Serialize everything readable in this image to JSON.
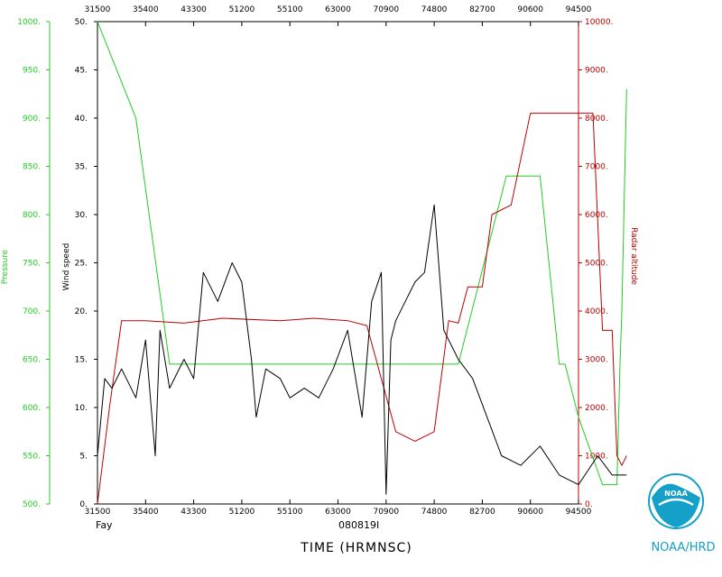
{
  "chart_data": {
    "type": "line",
    "x_ticks": [
      "31500",
      "35400",
      "43300",
      "51200",
      "55100",
      "63000",
      "70900",
      "74800",
      "82700",
      "90600",
      "94500"
    ],
    "xlabel": "TIME (HRMNSC)",
    "storm": "Fay",
    "flight_id": "080819I",
    "axes": {
      "wind": {
        "label": "Wind speed",
        "range": [
          0,
          50
        ],
        "ticks": [
          "0.",
          "5.",
          "10.",
          "15.",
          "20.",
          "25.",
          "30.",
          "35.",
          "40.",
          "45.",
          "50."
        ],
        "color": "#000000"
      },
      "pressure": {
        "label": "Pressure",
        "range": [
          500,
          1000
        ],
        "ticks": [
          "500.",
          "550.",
          "600.",
          "650.",
          "700.",
          "750.",
          "800.",
          "850.",
          "900.",
          "950.",
          "1000."
        ],
        "color": "#22cc22"
      },
      "altitude": {
        "label": "Radar altitude",
        "range": [
          0,
          10000
        ],
        "ticks": [
          "0.",
          "1000.",
          "2000.",
          "3000.",
          "4000.",
          "5000.",
          "6000.",
          "7000.",
          "8000.",
          "9000.",
          "10000."
        ],
        "color": "#bb0000"
      }
    },
    "series": [
      {
        "name": "Pressure",
        "color": "#22cc22",
        "x": [
          0,
          0.8,
          1.5,
          2.4,
          3.4,
          4.2,
          5.6,
          6.8,
          7.5,
          8.5,
          9.2,
          9.6,
          9.72,
          10.0,
          10.5,
          10.8,
          10.86,
          10.9,
          11.0
        ],
        "y": [
          1000,
          900,
          645,
          645,
          645,
          645,
          645,
          645,
          645,
          840,
          840,
          645,
          645,
          590,
          520,
          520,
          640,
          700,
          930
        ]
      },
      {
        "name": "Radar altitude",
        "color": "#bb0000",
        "x": [
          0,
          0.25,
          0.5,
          1.0,
          1.8,
          2.6,
          3.8,
          4.5,
          5.2,
          5.6,
          6.2,
          6.6,
          7.0,
          7.3,
          7.5,
          7.7,
          8.0,
          8.2,
          8.6,
          9.0,
          9.5,
          10.0,
          10.3,
          10.5,
          10.7,
          10.8,
          10.9,
          11.0
        ],
        "y": [
          0,
          2000,
          3800,
          3800,
          3750,
          3850,
          3800,
          3850,
          3800,
          3700,
          1500,
          1300,
          1500,
          3800,
          3750,
          4500,
          4500,
          6000,
          6200,
          8100,
          8100,
          8100,
          8100,
          3600,
          3600,
          1000,
          800,
          1000
        ]
      },
      {
        "name": "Wind speed",
        "color": "#000000",
        "x": [
          0,
          0.15,
          0.3,
          0.5,
          0.8,
          1.0,
          1.2,
          1.3,
          1.5,
          1.8,
          2.0,
          2.2,
          2.5,
          2.8,
          3.0,
          3.2,
          3.3,
          3.5,
          3.8,
          4.0,
          4.3,
          4.6,
          4.9,
          5.2,
          5.5,
          5.7,
          5.9,
          6.0,
          6.1,
          6.2,
          6.4,
          6.6,
          6.8,
          7.0,
          7.2,
          7.5,
          7.8,
          8.1,
          8.4,
          8.8,
          9.2,
          9.6,
          10.0,
          10.4,
          10.7,
          11.0
        ],
        "y": [
          5,
          13,
          12,
          14,
          11,
          17,
          5,
          18,
          12,
          15,
          13,
          24,
          21,
          25,
          23,
          15,
          9,
          14,
          13,
          11,
          12,
          11,
          14,
          18,
          9,
          21,
          24,
          1,
          17,
          19,
          21,
          23,
          24,
          31,
          18,
          15,
          13,
          9,
          5,
          4,
          6,
          3,
          2,
          5,
          3,
          3
        ]
      }
    ],
    "logo": {
      "label": "NOAA/HRD",
      "emblem": "NOAA"
    }
  }
}
